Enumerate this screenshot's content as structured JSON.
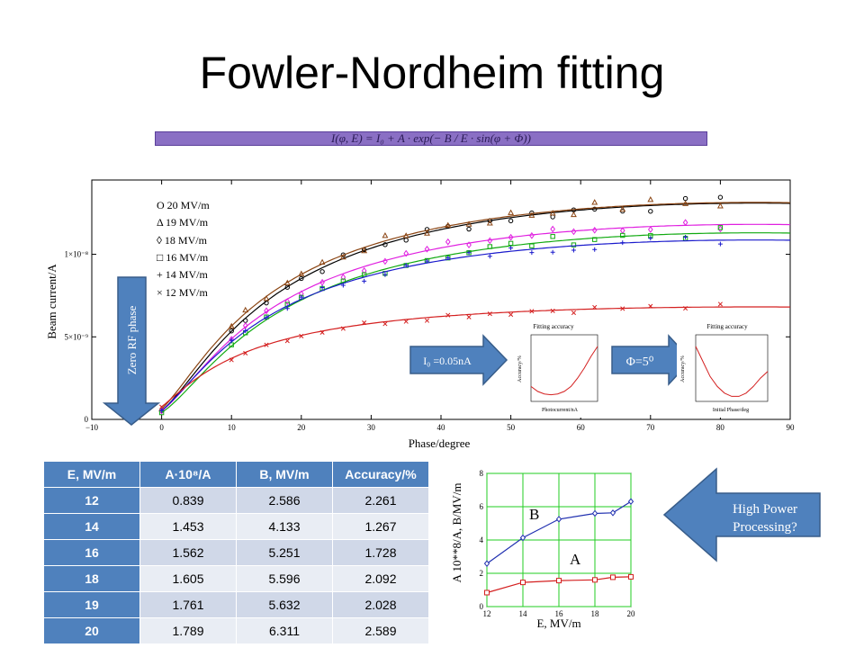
{
  "slide": {
    "title": "Fowler-Nordheim fitting",
    "formula": "I(φ, E) = I₀ + A · exp(− B / E · sin(φ + Φ))"
  },
  "arrows": {
    "zero_rf": "Zero RF phase",
    "i0": "I₀ =0.05nA",
    "phi": "Φ=5⁰",
    "hpp": [
      "High Power",
      "Processing?"
    ]
  },
  "legend": [
    "O 20 MV/m",
    "Δ  19 MV/m",
    "◊  18 MV/m",
    "□  16 MV/m",
    "+  14 MV/m",
    "×  12 MV/m"
  ],
  "table": {
    "headers": [
      "E, MV/m",
      "A·10⁸/A",
      "B, MV/m",
      "Accuracy/%"
    ],
    "rows": [
      [
        "12",
        "0.839",
        "2.586",
        "2.261"
      ],
      [
        "14",
        "1.453",
        "4.133",
        "1.267"
      ],
      [
        "16",
        "1.562",
        "5.251",
        "1.728"
      ],
      [
        "18",
        "1.605",
        "5.596",
        "2.092"
      ],
      [
        "19",
        "1.761",
        "5.632",
        "2.028"
      ],
      [
        "20",
        "1.789",
        "6.311",
        "2.589"
      ]
    ]
  },
  "chart_data": [
    {
      "type": "scatter",
      "xlabel": "Phase/degree",
      "ylabel": "Beam current/A",
      "xlim": [
        -10,
        90
      ],
      "ylim": [
        0,
        1.45e-08
      ],
      "xticks": [
        -10,
        0,
        10,
        20,
        30,
        40,
        50,
        60,
        70,
        80,
        90
      ],
      "yticks": [
        {
          "value": 0,
          "label": "0"
        },
        {
          "value": 5e-09,
          "label": "5×10⁻⁹"
        },
        {
          "value": 1e-08,
          "label": "1×10⁻⁸"
        }
      ],
      "series": [
        {
          "name": "20 MV/m",
          "field": 20,
          "A": 1.789e-08,
          "B": 6.311,
          "marker": "circle",
          "color": "#000000"
        },
        {
          "name": "19 MV/m",
          "field": 19,
          "A": 1.761e-08,
          "B": 5.632,
          "marker": "triangle",
          "color": "#8b4513"
        },
        {
          "name": "18 MV/m",
          "field": 18,
          "A": 1.605e-08,
          "B": 5.596,
          "marker": "diamond",
          "color": "#e020e0"
        },
        {
          "name": "16 MV/m",
          "field": 16,
          "A": 1.562e-08,
          "B": 5.251,
          "marker": "square",
          "color": "#11aa11"
        },
        {
          "name": "14 MV/m",
          "field": 14,
          "A": 1.453e-08,
          "B": 4.133,
          "marker": "plus",
          "color": "#1a1acc"
        },
        {
          "name": "12 MV/m",
          "field": 12,
          "A": 8.39e-09,
          "B": 2.586,
          "marker": "cross",
          "color": "#d42020"
        }
      ],
      "model": {
        "I0": 5e-11,
        "phi_offset_deg": 5
      }
    },
    {
      "type": "line",
      "title": "Fitting accuracy",
      "xlabel": "Photocurrent/nA",
      "ylabel": "Accuracy/%",
      "xlim": [
        -1.0,
        1.0
      ],
      "ylim": [
        1,
        5
      ],
      "x": [
        -1.0,
        -0.8,
        -0.6,
        -0.4,
        -0.2,
        0.0,
        0.2,
        0.4,
        0.6,
        0.8,
        1.0
      ],
      "y": [
        1.9,
        1.6,
        1.45,
        1.4,
        1.45,
        1.6,
        1.9,
        2.4,
        3.0,
        3.7,
        4.3
      ]
    },
    {
      "type": "line",
      "title": "Fitting accuracy",
      "xlabel": "Initial Phase/deg",
      "ylabel": "Accuracy/%",
      "xlim": [
        -10,
        20
      ],
      "ylim": [
        1,
        5
      ],
      "x": [
        -10,
        -7,
        -4,
        -1,
        2,
        5,
        8,
        11,
        14,
        17,
        20
      ],
      "y": [
        4.3,
        3.4,
        2.5,
        1.9,
        1.5,
        1.3,
        1.3,
        1.5,
        1.9,
        2.4,
        2.8
      ]
    },
    {
      "type": "line",
      "xlabel": "E, MV/m",
      "ylabel": "A 10**8/A, B/MV/m",
      "xlim": [
        12,
        20
      ],
      "ylim": [
        0,
        8
      ],
      "xticks": [
        12,
        14,
        16,
        18,
        20
      ],
      "yticks": [
        0,
        2,
        4,
        6,
        8
      ],
      "series": [
        {
          "name": "B",
          "x": [
            12,
            14,
            16,
            18,
            19,
            20
          ],
          "values": [
            2.586,
            4.133,
            5.251,
            5.596,
            5.632,
            6.311
          ],
          "color": "#2030b0"
        },
        {
          "name": "A",
          "x": [
            12,
            14,
            16,
            18,
            19,
            20
          ],
          "values": [
            0.839,
            1.453,
            1.562,
            1.605,
            1.761,
            1.789
          ],
          "color": "#d42020"
        }
      ]
    }
  ]
}
